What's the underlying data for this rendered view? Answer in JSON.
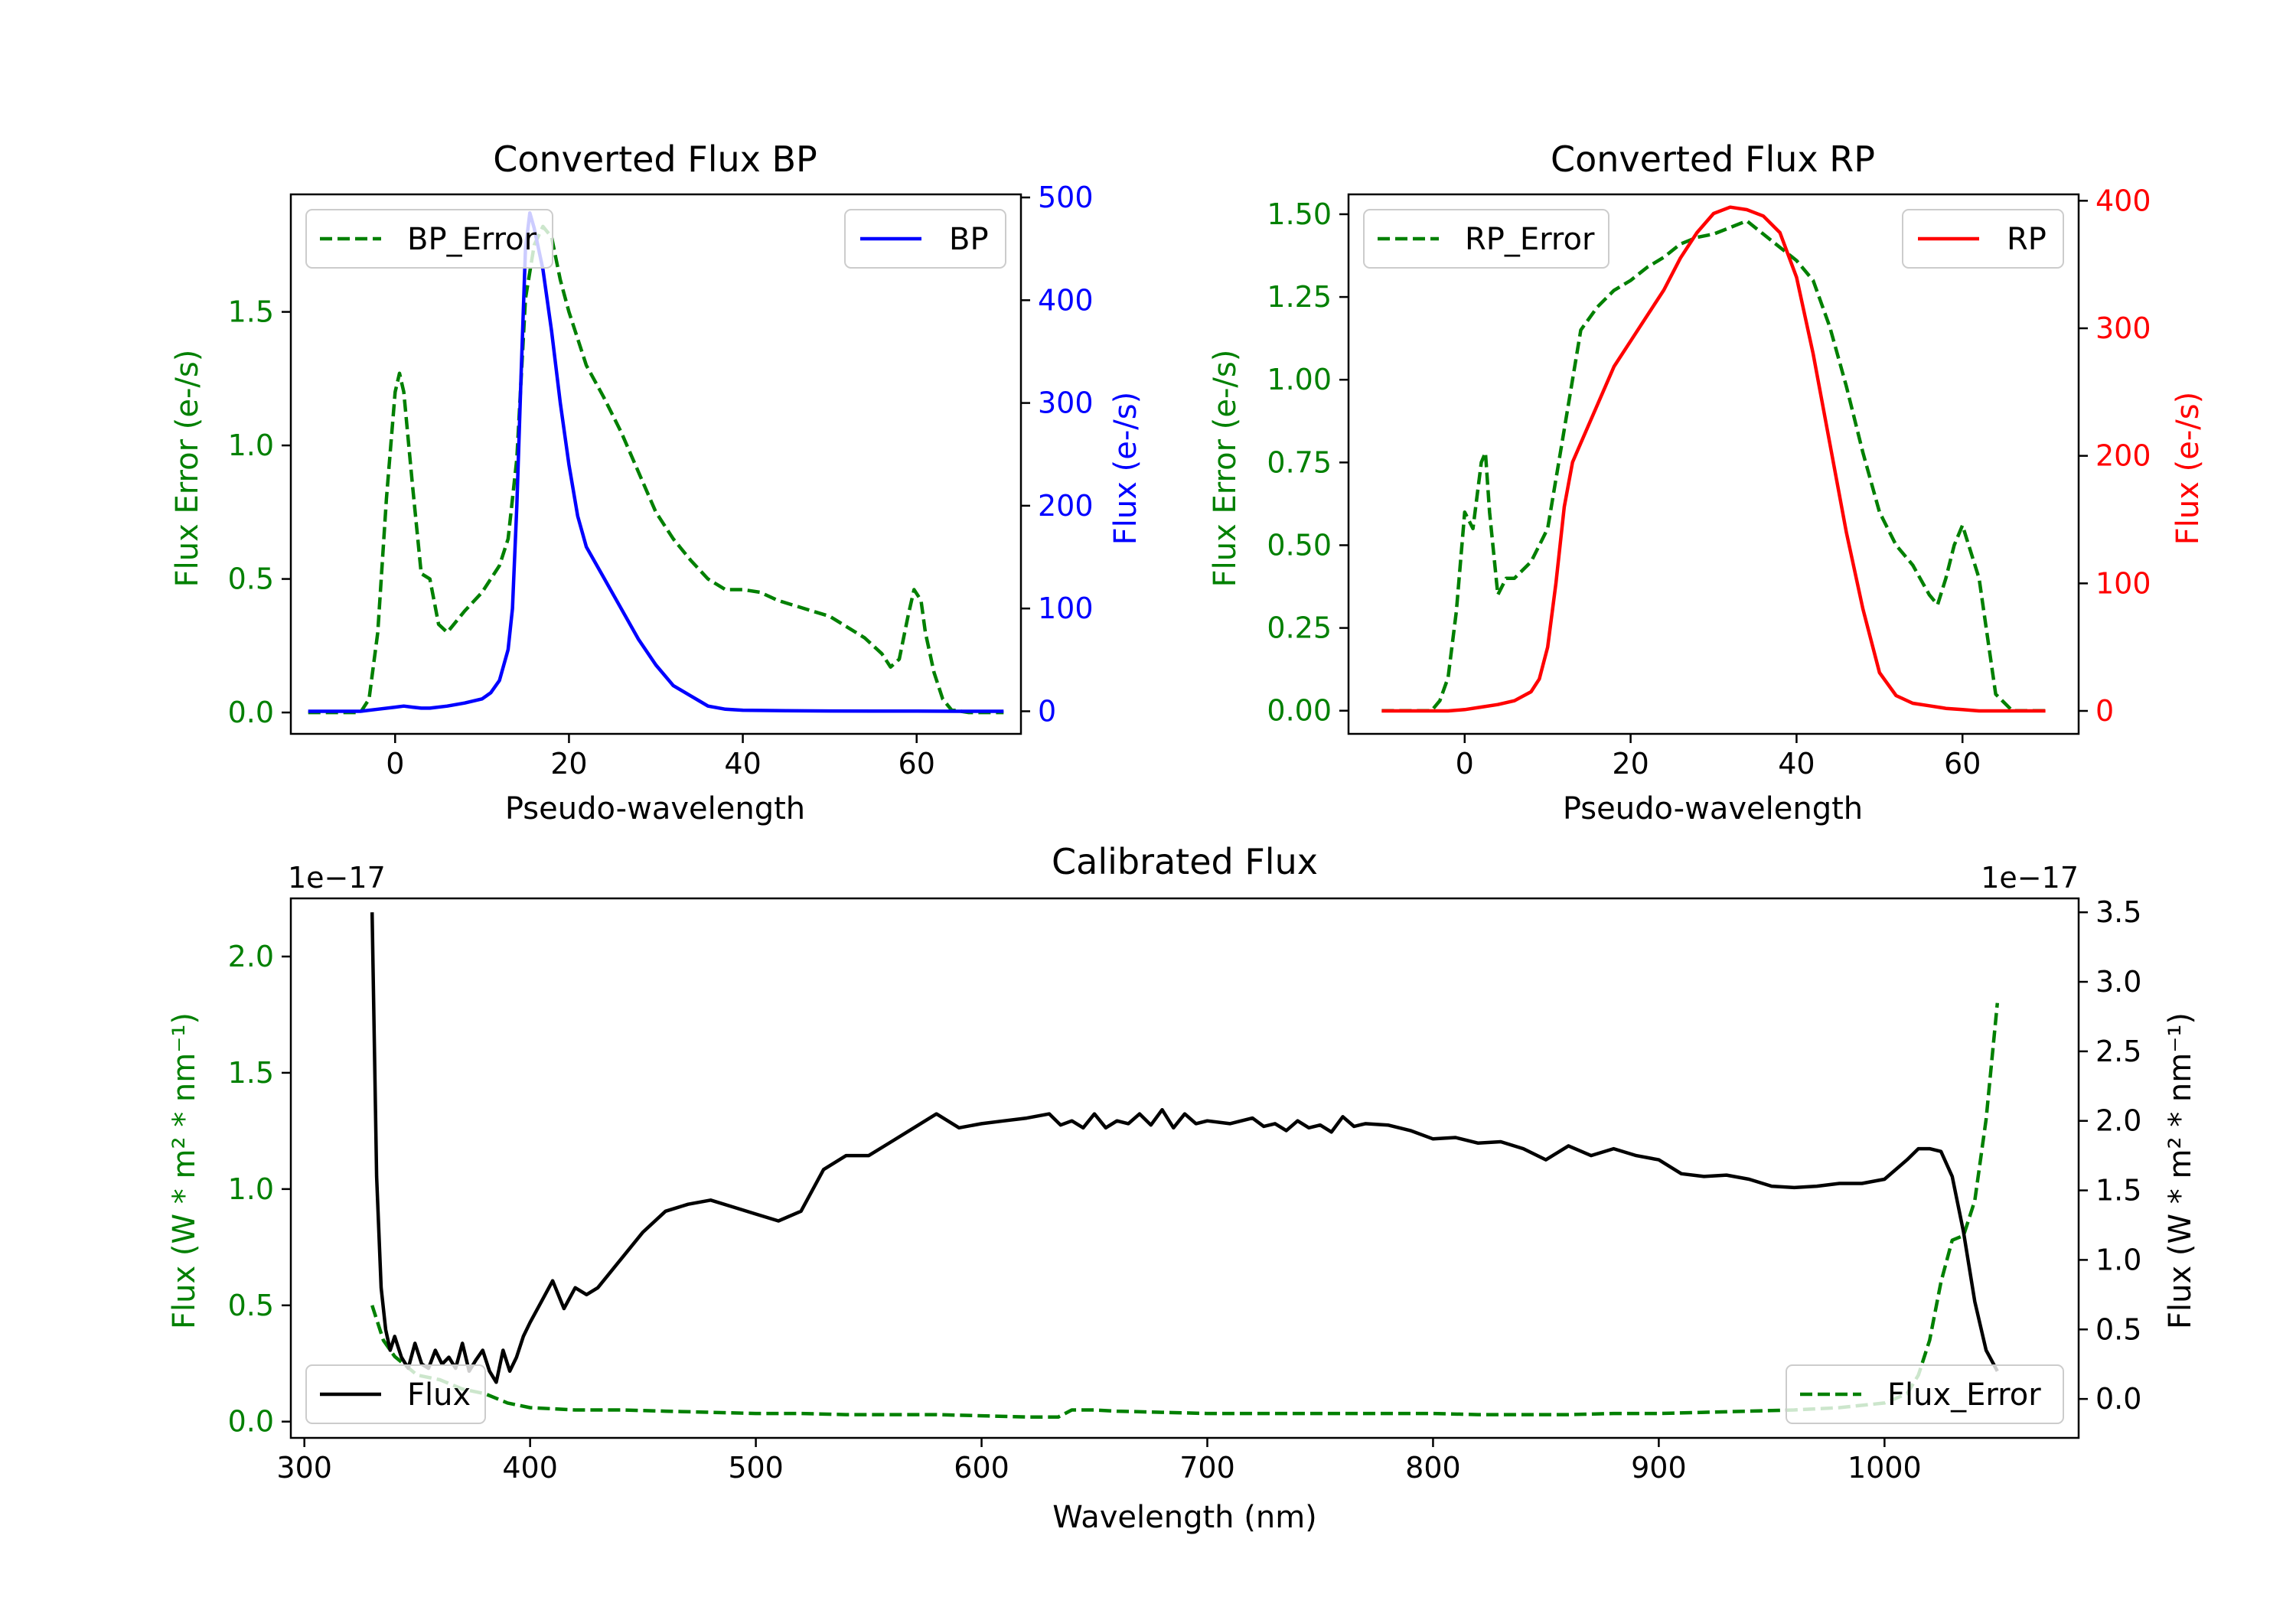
{
  "chart_data": [
    {
      "type": "line",
      "title": "Converted Flux BP",
      "xlabel": "Pseudo-wavelength",
      "ylabel_left": "Flux Error (e-/s)",
      "ylabel_right": "Flux (e-/s)",
      "xlim": [
        -12,
        72
      ],
      "ylim_left": [
        -0.08,
        1.94
      ],
      "ylim_right": [
        -22,
        503
      ],
      "xticks": [
        "0",
        "20",
        "40",
        "60"
      ],
      "xtick_values": [
        0,
        20,
        40,
        60
      ],
      "yticks_left": [
        "0.0",
        "0.5",
        "1.0",
        "1.5"
      ],
      "ytick_values_left": [
        0,
        0.5,
        1.0,
        1.5
      ],
      "yticks_right": [
        "0",
        "100",
        "200",
        "300",
        "400",
        "500"
      ],
      "ytick_values_right": [
        0,
        100,
        200,
        300,
        400,
        500
      ],
      "legend_left": "top-left",
      "legend_right": "top-right",
      "colors": {
        "error": "#008000",
        "flux": "#0000ff",
        "error_axis": "#008000",
        "flux_axis": "#0000ff"
      },
      "series": [
        {
          "name": "BP_Error",
          "axis": "left",
          "style": "dashed",
          "color": "#008000",
          "x": [
            -10,
            -4,
            -3,
            -2,
            -1,
            0,
            0.5,
            1,
            2,
            3,
            4,
            5,
            6,
            8,
            10,
            12,
            13,
            14,
            15,
            16,
            17,
            18,
            19,
            20,
            22,
            24,
            26,
            28,
            30,
            32,
            34,
            36,
            38,
            40,
            42,
            44,
            46,
            48,
            50,
            52,
            54,
            56,
            57,
            58,
            59,
            59.7,
            60.5,
            61,
            62,
            63,
            64,
            66,
            70
          ],
          "y": [
            0,
            0,
            0.05,
            0.3,
            0.8,
            1.2,
            1.27,
            1.2,
            0.85,
            0.52,
            0.5,
            0.33,
            0.3,
            0.38,
            0.45,
            0.55,
            0.65,
            0.95,
            1.55,
            1.75,
            1.82,
            1.78,
            1.62,
            1.5,
            1.3,
            1.18,
            1.05,
            0.9,
            0.75,
            0.65,
            0.57,
            0.5,
            0.46,
            0.46,
            0.45,
            0.42,
            0.4,
            0.38,
            0.36,
            0.32,
            0.28,
            0.22,
            0.17,
            0.2,
            0.36,
            0.46,
            0.42,
            0.3,
            0.15,
            0.05,
            0.01,
            0,
            0
          ]
        },
        {
          "name": "BP",
          "axis": "right",
          "style": "solid",
          "color": "#0000ff",
          "x": [
            -10,
            -4,
            -2,
            0,
            1,
            2,
            3,
            4,
            6,
            8,
            10,
            11,
            12,
            13,
            13.5,
            14,
            14.5,
            15,
            15.5,
            16,
            17,
            18,
            19,
            20,
            21,
            22,
            24,
            26,
            28,
            30,
            32,
            34,
            35,
            36,
            38,
            40,
            45,
            50,
            55,
            60,
            65,
            70
          ],
          "y": [
            0,
            0,
            2,
            4,
            5,
            4,
            3,
            3,
            5,
            8,
            12,
            18,
            30,
            60,
            100,
            200,
            330,
            450,
            485,
            470,
            430,
            370,
            300,
            240,
            190,
            160,
            130,
            100,
            70,
            45,
            25,
            15,
            10,
            5,
            2,
            1,
            0.5,
            0.3,
            0.2,
            0.1,
            0,
            0
          ]
        }
      ]
    },
    {
      "type": "line",
      "title": "Converted Flux RP",
      "xlabel": "Pseudo-wavelength",
      "ylabel_left": "Flux Error (e-/s)",
      "ylabel_right": "Flux (e-/s)",
      "xlim": [
        -14,
        74
      ],
      "ylim_left": [
        -0.07,
        1.56
      ],
      "ylim_right": [
        -18,
        405
      ],
      "xticks": [
        "0",
        "20",
        "40",
        "60"
      ],
      "xtick_values": [
        0,
        20,
        40,
        60
      ],
      "yticks_left": [
        "0.00",
        "0.25",
        "0.50",
        "0.75",
        "1.00",
        "1.25",
        "1.50"
      ],
      "ytick_values_left": [
        0,
        0.25,
        0.5,
        0.75,
        1.0,
        1.25,
        1.5
      ],
      "yticks_right": [
        "0",
        "100",
        "200",
        "300",
        "400"
      ],
      "ytick_values_right": [
        0,
        100,
        200,
        300,
        400
      ],
      "legend_left": "top-left",
      "legend_right": "top-right",
      "colors": {
        "error": "#008000",
        "flux": "#ff0000",
        "error_axis": "#008000",
        "flux_axis": "#ff0000"
      },
      "series": [
        {
          "name": "RP_Error",
          "axis": "left",
          "style": "dashed",
          "color": "#008000",
          "x": [
            -10,
            -4,
            -3,
            -2,
            -1,
            0,
            1,
            2,
            2.5,
            3,
            4,
            5,
            6,
            8,
            10,
            12,
            14,
            16,
            18,
            20,
            22,
            24,
            26,
            28,
            30,
            32,
            34,
            36,
            38,
            40,
            42,
            44,
            46,
            48,
            50,
            52,
            54,
            56,
            57,
            58,
            59,
            60,
            62,
            64,
            66,
            70
          ],
          "y": [
            0,
            0,
            0.03,
            0.1,
            0.3,
            0.6,
            0.55,
            0.75,
            0.78,
            0.6,
            0.35,
            0.4,
            0.4,
            0.45,
            0.55,
            0.85,
            1.15,
            1.22,
            1.27,
            1.3,
            1.34,
            1.37,
            1.41,
            1.43,
            1.44,
            1.46,
            1.48,
            1.44,
            1.4,
            1.36,
            1.3,
            1.16,
            0.98,
            0.78,
            0.6,
            0.5,
            0.44,
            0.35,
            0.32,
            0.4,
            0.5,
            0.56,
            0.4,
            0.05,
            0,
            0
          ]
        },
        {
          "name": "RP",
          "axis": "right",
          "style": "solid",
          "color": "#ff0000",
          "x": [
            -10,
            -4,
            -2,
            0,
            2,
            4,
            6,
            8,
            9,
            10,
            11,
            12,
            13,
            14,
            16,
            18,
            20,
            22,
            24,
            26,
            28,
            30,
            32,
            34,
            36,
            38,
            40,
            42,
            44,
            46,
            48,
            50,
            52,
            54,
            56,
            58,
            60,
            62,
            65,
            70
          ],
          "y": [
            0,
            0,
            0,
            1,
            3,
            5,
            8,
            15,
            25,
            50,
            100,
            160,
            195,
            210,
            240,
            270,
            290,
            310,
            330,
            355,
            375,
            390,
            395,
            393,
            388,
            375,
            340,
            280,
            210,
            140,
            80,
            30,
            12,
            6,
            4,
            2,
            1,
            0,
            0,
            0
          ]
        }
      ]
    },
    {
      "type": "line",
      "title": "Calibrated Flux",
      "xlabel": "Wavelength (nm)",
      "ylabel_left": "Flux (W * m² * nm⁻¹)",
      "ylabel_right": "Flux (W * m² * nm⁻¹)",
      "offset_left": "1e−17",
      "offset_right": "1e−17",
      "xlim": [
        294,
        1086
      ],
      "ylim_left": [
        -0.07,
        2.25
      ],
      "ylim_right": [
        -0.28,
        3.6
      ],
      "xticks": [
        "300",
        "400",
        "500",
        "600",
        "700",
        "800",
        "900",
        "1000"
      ],
      "xtick_values": [
        300,
        400,
        500,
        600,
        700,
        800,
        900,
        1000
      ],
      "yticks_left": [
        "0.0",
        "0.5",
        "1.0",
        "1.5",
        "2.0"
      ],
      "ytick_values_left": [
        0,
        0.5,
        1.0,
        1.5,
        2.0
      ],
      "yticks_right": [
        "0.0",
        "0.5",
        "1.0",
        "1.5",
        "2.0",
        "2.5",
        "3.0",
        "3.5"
      ],
      "ytick_values_right": [
        0,
        0.5,
        1.0,
        1.5,
        2.0,
        2.5,
        3.0,
        3.5
      ],
      "legend_right": "bottom-left",
      "legend_left": "bottom-right",
      "colors": {
        "error": "#008000",
        "flux": "#000000",
        "error_axis": "#008000",
        "flux_axis": "#000000"
      },
      "series": [
        {
          "name": "Flux_Error",
          "axis": "left",
          "style": "dashed",
          "color": "#008000",
          "x": [
            330,
            335,
            340,
            345,
            350,
            360,
            370,
            380,
            385,
            390,
            400,
            420,
            440,
            460,
            480,
            500,
            520,
            540,
            560,
            580,
            600,
            620,
            634,
            640,
            650,
            660,
            680,
            700,
            720,
            740,
            760,
            780,
            800,
            820,
            840,
            860,
            880,
            900,
            920,
            940,
            960,
            980,
            1000,
            1010,
            1015,
            1020,
            1025,
            1030,
            1035,
            1040,
            1045,
            1050
          ],
          "y": [
            0.5,
            0.35,
            0.28,
            0.24,
            0.2,
            0.18,
            0.14,
            0.12,
            0.1,
            0.08,
            0.06,
            0.05,
            0.05,
            0.045,
            0.04,
            0.035,
            0.035,
            0.03,
            0.03,
            0.03,
            0.025,
            0.02,
            0.02,
            0.05,
            0.05,
            0.045,
            0.04,
            0.035,
            0.035,
            0.035,
            0.035,
            0.035,
            0.035,
            0.03,
            0.03,
            0.03,
            0.035,
            0.035,
            0.04,
            0.045,
            0.05,
            0.06,
            0.08,
            0.12,
            0.2,
            0.35,
            0.6,
            0.78,
            0.8,
            0.95,
            1.3,
            1.8
          ]
        },
        {
          "name": "Flux",
          "axis": "right",
          "style": "solid",
          "color": "#000000",
          "x": [
            330,
            332,
            334,
            336,
            338,
            340,
            343,
            346,
            349,
            352,
            355,
            358,
            361,
            364,
            367,
            370,
            373,
            376,
            379,
            382,
            385,
            388,
            391,
            394,
            397,
            400,
            405,
            410,
            415,
            420,
            425,
            430,
            440,
            450,
            460,
            470,
            480,
            490,
            500,
            510,
            520,
            530,
            540,
            550,
            560,
            570,
            580,
            590,
            600,
            610,
            620,
            630,
            635,
            640,
            645,
            650,
            655,
            660,
            665,
            670,
            675,
            680,
            685,
            690,
            695,
            700,
            710,
            720,
            725,
            730,
            735,
            740,
            745,
            750,
            755,
            760,
            765,
            770,
            780,
            790,
            800,
            810,
            820,
            830,
            840,
            850,
            860,
            870,
            880,
            890,
            900,
            910,
            920,
            930,
            940,
            950,
            960,
            970,
            980,
            990,
            1000,
            1010,
            1015,
            1020,
            1025,
            1030,
            1035,
            1040,
            1045,
            1050
          ],
          "y": [
            3.5,
            1.6,
            0.8,
            0.5,
            0.35,
            0.45,
            0.3,
            0.22,
            0.4,
            0.25,
            0.22,
            0.35,
            0.25,
            0.3,
            0.22,
            0.4,
            0.2,
            0.28,
            0.35,
            0.2,
            0.12,
            0.35,
            0.2,
            0.3,
            0.45,
            0.55,
            0.7,
            0.85,
            0.65,
            0.8,
            0.75,
            0.8,
            1.0,
            1.2,
            1.35,
            1.4,
            1.43,
            1.38,
            1.33,
            1.28,
            1.35,
            1.65,
            1.75,
            1.75,
            1.85,
            1.95,
            2.05,
            1.95,
            1.98,
            2.0,
            2.02,
            2.05,
            1.97,
            2.0,
            1.95,
            2.05,
            1.95,
            2.0,
            1.98,
            2.05,
            1.97,
            2.08,
            1.95,
            2.05,
            1.98,
            2.0,
            1.98,
            2.02,
            1.96,
            1.98,
            1.93,
            2.0,
            1.95,
            1.97,
            1.92,
            2.03,
            1.96,
            1.98,
            1.97,
            1.93,
            1.87,
            1.88,
            1.84,
            1.85,
            1.8,
            1.72,
            1.82,
            1.75,
            1.8,
            1.75,
            1.72,
            1.62,
            1.6,
            1.61,
            1.58,
            1.53,
            1.52,
            1.53,
            1.55,
            1.55,
            1.58,
            1.72,
            1.8,
            1.8,
            1.78,
            1.6,
            1.2,
            0.7,
            0.35,
            0.2
          ]
        }
      ]
    }
  ]
}
